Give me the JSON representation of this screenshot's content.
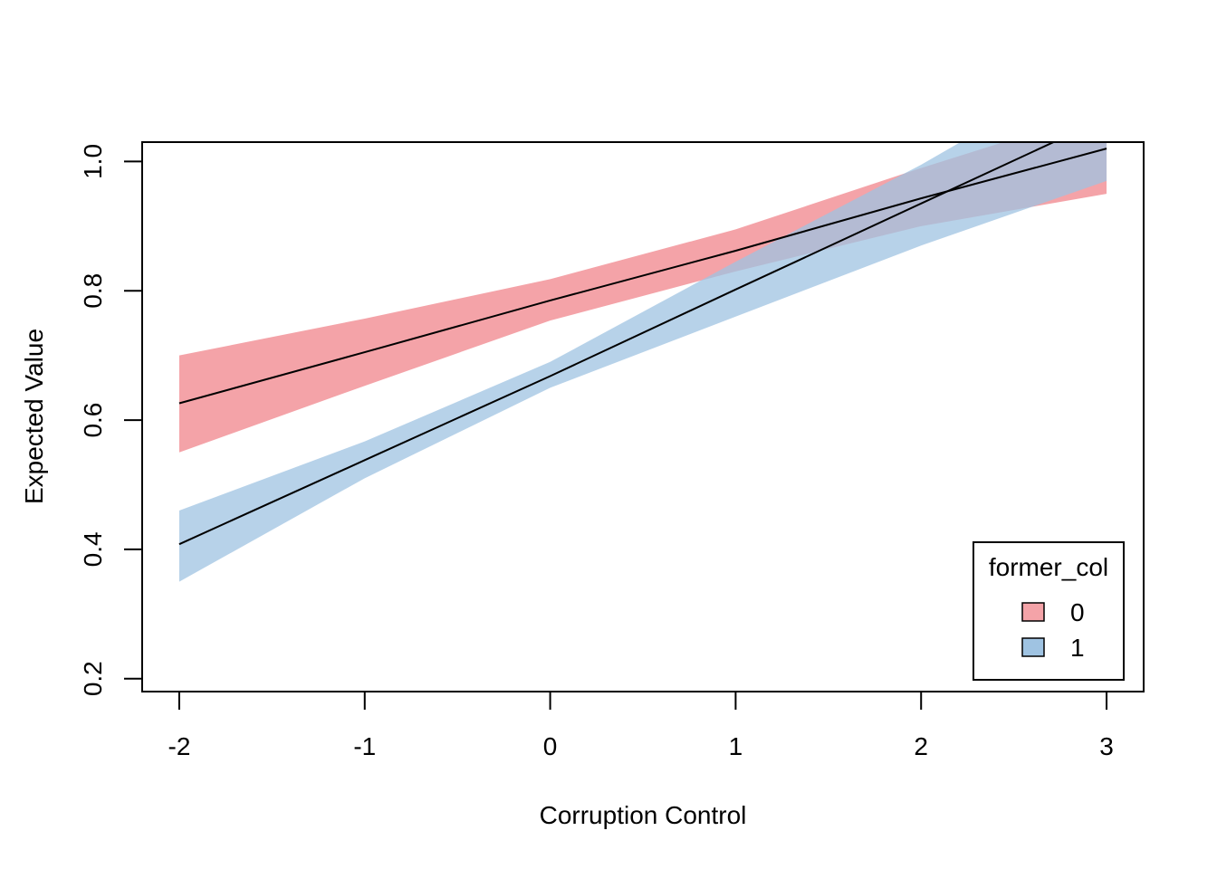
{
  "chart_data": {
    "type": "line",
    "title": "",
    "xlabel": "Corruption Control",
    "ylabel": "Expected Value",
    "xlim": [
      -2.2,
      3.2
    ],
    "ylim": [
      0.18,
      1.03
    ],
    "x_ticks": [
      -2,
      -1,
      0,
      1,
      2,
      3
    ],
    "x_tick_labels": [
      "-2",
      "-1",
      "0",
      "1",
      "2",
      "3"
    ],
    "y_ticks": [
      0.2,
      0.4,
      0.6,
      0.8,
      1.0
    ],
    "y_tick_labels": [
      "0.2",
      "0.4",
      "0.6",
      "0.8",
      "1.0"
    ],
    "grid": false,
    "legend": {
      "title": "former_col",
      "position": "bottom-right",
      "entries": [
        "0",
        "1"
      ]
    },
    "x": [
      -2,
      -1,
      0,
      1,
      2,
      3
    ],
    "series": [
      {
        "name": "0",
        "values": [
          0.626,
          0.705,
          0.785,
          0.862,
          0.943,
          1.02
        ],
        "lower": [
          0.55,
          0.653,
          0.754,
          0.83,
          0.9,
          0.95
        ],
        "upper": [
          0.7,
          0.757,
          0.818,
          0.895,
          0.99,
          1.08
        ],
        "color": "#F4A3A8"
      },
      {
        "name": "1",
        "values": [
          0.408,
          0.538,
          0.668,
          0.802,
          0.935,
          1.068
        ],
        "lower": [
          0.35,
          0.51,
          0.65,
          0.76,
          0.87,
          0.97
        ],
        "upper": [
          0.46,
          0.567,
          0.69,
          0.845,
          0.995,
          1.16
        ],
        "color": "#9FC3E2"
      }
    ],
    "line_color": "#000000"
  }
}
